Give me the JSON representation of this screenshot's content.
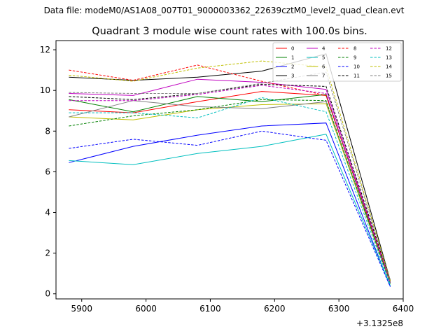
{
  "chart_data": {
    "type": "line",
    "suptitle": "Data file: modeM0/AS1A08_007T01_9000003362_22639cztM0_level2_quad_clean.evt",
    "title": "Quadrant 3 module wise count rates with 100.0s bins.",
    "xlabel": "",
    "ylabel": "",
    "x_offset_label": "+3.1325e8",
    "x": [
      5880,
      5980,
      6080,
      6180,
      6280,
      6380
    ],
    "xlim": [
      5860,
      6400
    ],
    "ylim": [
      -0.25,
      12.45
    ],
    "xticks": [
      5900,
      6000,
      6100,
      6200,
      6300,
      6400
    ],
    "yticks": [
      0,
      2,
      4,
      6,
      8,
      10,
      12
    ],
    "legend_position": "top-right",
    "grid": false,
    "series": [
      {
        "name": "0",
        "color": "#ff0000",
        "dash": false,
        "values": [
          9.05,
          8.9,
          9.45,
          9.95,
          9.75,
          0.6
        ]
      },
      {
        "name": "1",
        "color": "#008000",
        "dash": false,
        "values": [
          9.55,
          8.95,
          9.7,
          9.45,
          9.8,
          0.5
        ]
      },
      {
        "name": "2",
        "color": "#0000ff",
        "dash": false,
        "values": [
          6.45,
          7.25,
          7.8,
          8.25,
          8.4,
          0.35
        ]
      },
      {
        "name": "3",
        "color": "#000000",
        "dash": false,
        "values": [
          10.65,
          10.5,
          10.65,
          10.95,
          11.8,
          0.65
        ]
      },
      {
        "name": "4",
        "color": "#bf00bf",
        "dash": false,
        "values": [
          9.85,
          9.75,
          10.55,
          10.4,
          10.05,
          0.55
        ]
      },
      {
        "name": "5",
        "color": "#00bfbf",
        "dash": false,
        "values": [
          6.55,
          6.35,
          6.9,
          7.25,
          7.85,
          0.4
        ]
      },
      {
        "name": "6",
        "color": "#bfbf00",
        "dash": false,
        "values": [
          8.7,
          8.55,
          9.05,
          9.3,
          9.35,
          0.5
        ]
      },
      {
        "name": "7",
        "color": "#808080",
        "dash": false,
        "values": [
          8.7,
          9.5,
          9.2,
          9.1,
          9.45,
          0.55
        ]
      },
      {
        "name": "8",
        "color": "#ff0000",
        "dash": true,
        "values": [
          11.0,
          10.5,
          11.25,
          10.45,
          9.75,
          0.6
        ]
      },
      {
        "name": "9",
        "color": "#008000",
        "dash": true,
        "values": [
          8.25,
          8.75,
          9.05,
          9.55,
          9.5,
          0.5
        ]
      },
      {
        "name": "10",
        "color": "#0000ff",
        "dash": true,
        "values": [
          7.15,
          7.6,
          7.3,
          8.0,
          7.55,
          0.35
        ]
      },
      {
        "name": "11",
        "color": "#000000",
        "dash": true,
        "values": [
          9.7,
          9.55,
          9.85,
          10.3,
          10.2,
          0.65
        ]
      },
      {
        "name": "12",
        "color": "#bf00bf",
        "dash": true,
        "values": [
          9.5,
          9.5,
          9.8,
          10.25,
          9.85,
          0.55
        ]
      },
      {
        "name": "13",
        "color": "#00bfbf",
        "dash": true,
        "values": [
          8.9,
          8.9,
          8.65,
          9.65,
          8.95,
          0.45
        ]
      },
      {
        "name": "14",
        "color": "#bfbf00",
        "dash": true,
        "values": [
          10.75,
          10.45,
          11.1,
          11.45,
          11.15,
          0.65
        ]
      },
      {
        "name": "15",
        "color": "#808080",
        "dash": true,
        "values": [
          9.9,
          9.85,
          9.85,
          10.35,
          10.9,
          0.6
        ]
      }
    ]
  }
}
